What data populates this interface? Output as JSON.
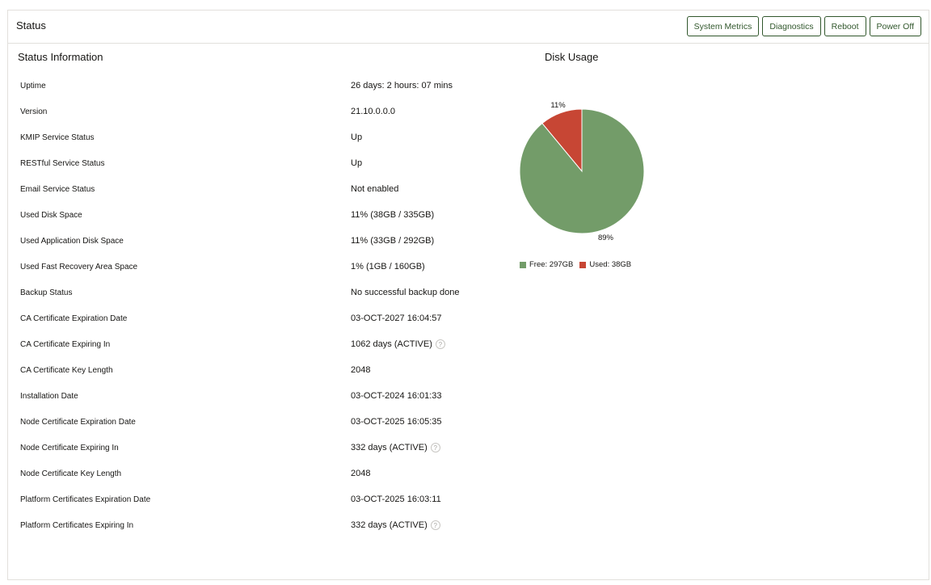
{
  "header": {
    "title": "Status",
    "buttons": {
      "system_metrics": "System Metrics",
      "diagnostics": "Diagnostics",
      "reboot": "Reboot",
      "power_off": "Power Off"
    }
  },
  "status_info": {
    "title": "Status Information",
    "rows": [
      {
        "label": "Uptime",
        "value": "26 days: 2 hours: 07 mins"
      },
      {
        "label": "Version",
        "value": "21.10.0.0.0"
      },
      {
        "label": "KMIP Service Status",
        "value": "Up"
      },
      {
        "label": "RESTful Service Status",
        "value": "Up"
      },
      {
        "label": "Email Service Status",
        "value": "Not enabled"
      },
      {
        "label": "Used Disk Space",
        "value": "11% (38GB / 335GB)"
      },
      {
        "label": "Used Application Disk Space",
        "value": "11% (33GB / 292GB)"
      },
      {
        "label": "Used Fast Recovery Area Space",
        "value": "1% (1GB / 160GB)"
      },
      {
        "label": "Backup Status",
        "value": "No successful backup done"
      },
      {
        "label": "CA Certificate Expiration Date",
        "value": "03-OCT-2027 16:04:57"
      },
      {
        "label": "CA Certificate Expiring In",
        "value": "1062 days (ACTIVE)",
        "help": true
      },
      {
        "label": "CA Certificate Key Length",
        "value": "2048"
      },
      {
        "label": "Installation Date",
        "value": "03-OCT-2024 16:01:33"
      },
      {
        "label": "Node Certificate Expiration Date",
        "value": "03-OCT-2025 16:05:35"
      },
      {
        "label": "Node Certificate Expiring In",
        "value": "332 days (ACTIVE)",
        "help": true
      },
      {
        "label": "Node Certificate Key Length",
        "value": "2048"
      },
      {
        "label": "Platform Certificates Expiration Date",
        "value": "03-OCT-2025 16:03:11"
      },
      {
        "label": "Platform Certificates Expiring In",
        "value": "332 days (ACTIVE)",
        "help": true
      }
    ],
    "help_glyph": "?"
  },
  "chart_data": {
    "type": "pie",
    "title": "Disk Usage",
    "slices": [
      {
        "name": "Free: 297GB",
        "value": 89,
        "label": "89%",
        "color": "#739c69"
      },
      {
        "name": "Used: 38GB",
        "value": 11,
        "label": "11%",
        "color": "#c74634"
      }
    ],
    "legend_position": "bottom"
  }
}
